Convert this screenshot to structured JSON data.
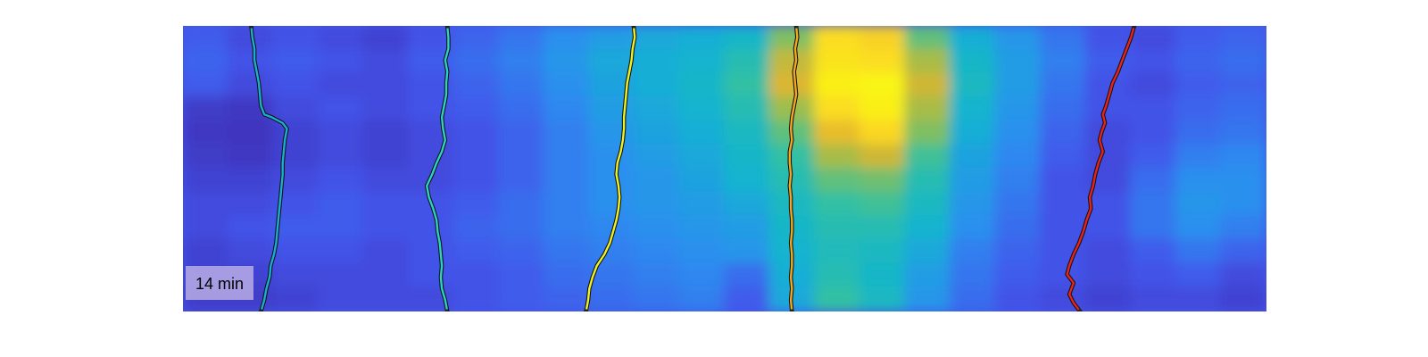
{
  "figure": {
    "time_label": "14 min"
  },
  "chart_data": {
    "type": "heatmap",
    "title": "",
    "xlabel": "",
    "ylabel": "",
    "grid": false,
    "legend": "none",
    "colormap": "parula",
    "colormap_stops": [
      "#3e26a8",
      "#4354ea",
      "#2d8df0",
      "#13b3d1",
      "#32c0a4",
      "#92bf51",
      "#e2b52e",
      "#fbd524",
      "#f9fb0e"
    ],
    "heatmap": {
      "cols": 24,
      "rows": 12,
      "values": [
        [
          0.14,
          0.1,
          0.12,
          0.1,
          0.08,
          0.12,
          0.16,
          0.2,
          0.26,
          0.3,
          0.34,
          0.36,
          0.4,
          0.6,
          0.9,
          0.86,
          0.56,
          0.36,
          0.28,
          0.2,
          0.12,
          0.1,
          0.14,
          0.16
        ],
        [
          0.16,
          0.12,
          0.14,
          0.12,
          0.1,
          0.14,
          0.18,
          0.22,
          0.28,
          0.34,
          0.36,
          0.38,
          0.46,
          0.7,
          0.92,
          0.9,
          0.66,
          0.4,
          0.3,
          0.22,
          0.14,
          0.12,
          0.16,
          0.18
        ],
        [
          0.14,
          0.1,
          0.12,
          0.1,
          0.1,
          0.12,
          0.16,
          0.2,
          0.26,
          0.32,
          0.36,
          0.4,
          0.5,
          0.74,
          0.96,
          0.98,
          0.72,
          0.42,
          0.3,
          0.2,
          0.12,
          0.1,
          0.14,
          0.16
        ],
        [
          0.06,
          0.05,
          0.1,
          0.12,
          0.1,
          0.12,
          0.14,
          0.18,
          0.24,
          0.3,
          0.34,
          0.38,
          0.46,
          0.64,
          0.9,
          0.96,
          0.66,
          0.38,
          0.28,
          0.18,
          0.12,
          0.12,
          0.16,
          0.18
        ],
        [
          0.05,
          0.04,
          0.08,
          0.1,
          0.08,
          0.1,
          0.12,
          0.16,
          0.22,
          0.28,
          0.32,
          0.36,
          0.42,
          0.56,
          0.78,
          0.88,
          0.6,
          0.36,
          0.26,
          0.16,
          0.1,
          0.12,
          0.18,
          0.2
        ],
        [
          0.06,
          0.05,
          0.08,
          0.1,
          0.08,
          0.1,
          0.12,
          0.16,
          0.22,
          0.26,
          0.3,
          0.34,
          0.4,
          0.5,
          0.66,
          0.72,
          0.52,
          0.32,
          0.24,
          0.14,
          0.1,
          0.14,
          0.22,
          0.24
        ],
        [
          0.08,
          0.08,
          0.1,
          0.12,
          0.1,
          0.1,
          0.12,
          0.16,
          0.22,
          0.26,
          0.28,
          0.32,
          0.38,
          0.46,
          0.56,
          0.58,
          0.46,
          0.3,
          0.22,
          0.12,
          0.1,
          0.18,
          0.26,
          0.26
        ],
        [
          0.1,
          0.1,
          0.12,
          0.14,
          0.12,
          0.12,
          0.14,
          0.18,
          0.22,
          0.26,
          0.28,
          0.3,
          0.34,
          0.42,
          0.5,
          0.52,
          0.42,
          0.28,
          0.2,
          0.12,
          0.12,
          0.2,
          0.28,
          0.26
        ],
        [
          0.1,
          0.12,
          0.14,
          0.14,
          0.12,
          0.12,
          0.16,
          0.18,
          0.22,
          0.24,
          0.26,
          0.28,
          0.3,
          0.4,
          0.46,
          0.46,
          0.38,
          0.26,
          0.18,
          0.12,
          0.12,
          0.2,
          0.26,
          0.22
        ],
        [
          0.08,
          0.1,
          0.12,
          0.12,
          0.1,
          0.12,
          0.14,
          0.16,
          0.2,
          0.22,
          0.24,
          0.26,
          0.28,
          0.38,
          0.44,
          0.42,
          0.34,
          0.22,
          0.16,
          0.12,
          0.1,
          0.14,
          0.2,
          0.16
        ],
        [
          0.08,
          0.08,
          0.1,
          0.1,
          0.1,
          0.12,
          0.12,
          0.14,
          0.18,
          0.2,
          0.22,
          0.24,
          0.18,
          0.36,
          0.46,
          0.4,
          0.3,
          0.2,
          0.14,
          0.12,
          0.1,
          0.12,
          0.14,
          0.1
        ],
        [
          0.06,
          0.06,
          0.08,
          0.1,
          0.1,
          0.1,
          0.12,
          0.14,
          0.16,
          0.18,
          0.2,
          0.22,
          0.14,
          0.34,
          0.5,
          0.42,
          0.28,
          0.18,
          0.12,
          0.1,
          0.08,
          0.1,
          0.1,
          0.08
        ]
      ]
    },
    "series": [
      {
        "color": "#1aaed2",
        "points": [
          [
            0.063,
            1.0
          ],
          [
            0.064,
            0.96
          ],
          [
            0.066,
            0.92
          ],
          [
            0.066,
            0.88
          ],
          [
            0.068,
            0.84
          ],
          [
            0.07,
            0.8
          ],
          [
            0.071,
            0.76
          ],
          [
            0.072,
            0.72
          ],
          [
            0.075,
            0.69
          ],
          [
            0.082,
            0.68
          ],
          [
            0.092,
            0.66
          ],
          [
            0.096,
            0.64
          ],
          [
            0.094,
            0.6
          ],
          [
            0.093,
            0.56
          ],
          [
            0.092,
            0.52
          ],
          [
            0.092,
            0.48
          ],
          [
            0.091,
            0.44
          ],
          [
            0.09,
            0.4
          ],
          [
            0.089,
            0.36
          ],
          [
            0.088,
            0.32
          ],
          [
            0.087,
            0.28
          ],
          [
            0.086,
            0.24
          ],
          [
            0.084,
            0.2
          ],
          [
            0.081,
            0.16
          ],
          [
            0.08,
            0.12
          ],
          [
            0.077,
            0.08
          ],
          [
            0.075,
            0.04
          ],
          [
            0.072,
            0.0
          ]
        ]
      },
      {
        "color": "#2bd3c4",
        "points": [
          [
            0.244,
            1.0
          ],
          [
            0.245,
            0.96
          ],
          [
            0.245,
            0.92
          ],
          [
            0.242,
            0.88
          ],
          [
            0.244,
            0.84
          ],
          [
            0.243,
            0.8
          ],
          [
            0.243,
            0.76
          ],
          [
            0.241,
            0.72
          ],
          [
            0.239,
            0.68
          ],
          [
            0.24,
            0.64
          ],
          [
            0.242,
            0.6
          ],
          [
            0.239,
            0.56
          ],
          [
            0.234,
            0.52
          ],
          [
            0.23,
            0.48
          ],
          [
            0.225,
            0.44
          ],
          [
            0.227,
            0.4
          ],
          [
            0.231,
            0.36
          ],
          [
            0.234,
            0.32
          ],
          [
            0.235,
            0.28
          ],
          [
            0.237,
            0.24
          ],
          [
            0.238,
            0.2
          ],
          [
            0.239,
            0.16
          ],
          [
            0.238,
            0.12
          ],
          [
            0.239,
            0.08
          ],
          [
            0.242,
            0.04
          ],
          [
            0.244,
            0.0
          ]
        ]
      },
      {
        "color": "#f0f224",
        "points": [
          [
            0.416,
            1.0
          ],
          [
            0.417,
            0.96
          ],
          [
            0.415,
            0.92
          ],
          [
            0.414,
            0.88
          ],
          [
            0.412,
            0.84
          ],
          [
            0.41,
            0.8
          ],
          [
            0.409,
            0.76
          ],
          [
            0.408,
            0.72
          ],
          [
            0.407,
            0.68
          ],
          [
            0.407,
            0.64
          ],
          [
            0.406,
            0.6
          ],
          [
            0.404,
            0.56
          ],
          [
            0.401,
            0.52
          ],
          [
            0.4,
            0.48
          ],
          [
            0.402,
            0.44
          ],
          [
            0.403,
            0.4
          ],
          [
            0.402,
            0.36
          ],
          [
            0.4,
            0.32
          ],
          [
            0.397,
            0.28
          ],
          [
            0.394,
            0.24
          ],
          [
            0.389,
            0.2
          ],
          [
            0.382,
            0.16
          ],
          [
            0.378,
            0.12
          ],
          [
            0.375,
            0.08
          ],
          [
            0.374,
            0.04
          ],
          [
            0.372,
            0.0
          ]
        ]
      },
      {
        "color": "#f5a81e",
        "points": [
          [
            0.566,
            1.0
          ],
          [
            0.567,
            0.96
          ],
          [
            0.565,
            0.92
          ],
          [
            0.566,
            0.88
          ],
          [
            0.564,
            0.84
          ],
          [
            0.565,
            0.8
          ],
          [
            0.566,
            0.76
          ],
          [
            0.564,
            0.72
          ],
          [
            0.562,
            0.68
          ],
          [
            0.561,
            0.64
          ],
          [
            0.562,
            0.6
          ],
          [
            0.56,
            0.56
          ],
          [
            0.56,
            0.52
          ],
          [
            0.561,
            0.48
          ],
          [
            0.56,
            0.44
          ],
          [
            0.561,
            0.4
          ],
          [
            0.561,
            0.36
          ],
          [
            0.562,
            0.32
          ],
          [
            0.562,
            0.28
          ],
          [
            0.561,
            0.24
          ],
          [
            0.562,
            0.2
          ],
          [
            0.562,
            0.16
          ],
          [
            0.561,
            0.12
          ],
          [
            0.562,
            0.08
          ],
          [
            0.561,
            0.04
          ],
          [
            0.562,
            0.0
          ]
        ]
      },
      {
        "color": "#e8231a",
        "points": [
          [
            0.878,
            1.0
          ],
          [
            0.875,
            0.96
          ],
          [
            0.871,
            0.92
          ],
          [
            0.867,
            0.88
          ],
          [
            0.863,
            0.84
          ],
          [
            0.858,
            0.8
          ],
          [
            0.855,
            0.76
          ],
          [
            0.852,
            0.72
          ],
          [
            0.849,
            0.69
          ],
          [
            0.851,
            0.66
          ],
          [
            0.848,
            0.63
          ],
          [
            0.846,
            0.6
          ],
          [
            0.849,
            0.56
          ],
          [
            0.845,
            0.52
          ],
          [
            0.842,
            0.48
          ],
          [
            0.84,
            0.44
          ],
          [
            0.837,
            0.4
          ],
          [
            0.838,
            0.36
          ],
          [
            0.834,
            0.32
          ],
          [
            0.831,
            0.28
          ],
          [
            0.827,
            0.24
          ],
          [
            0.822,
            0.2
          ],
          [
            0.818,
            0.16
          ],
          [
            0.816,
            0.13
          ],
          [
            0.822,
            0.1
          ],
          [
            0.818,
            0.06
          ],
          [
            0.822,
            0.03
          ],
          [
            0.828,
            0.0
          ]
        ]
      }
    ]
  }
}
